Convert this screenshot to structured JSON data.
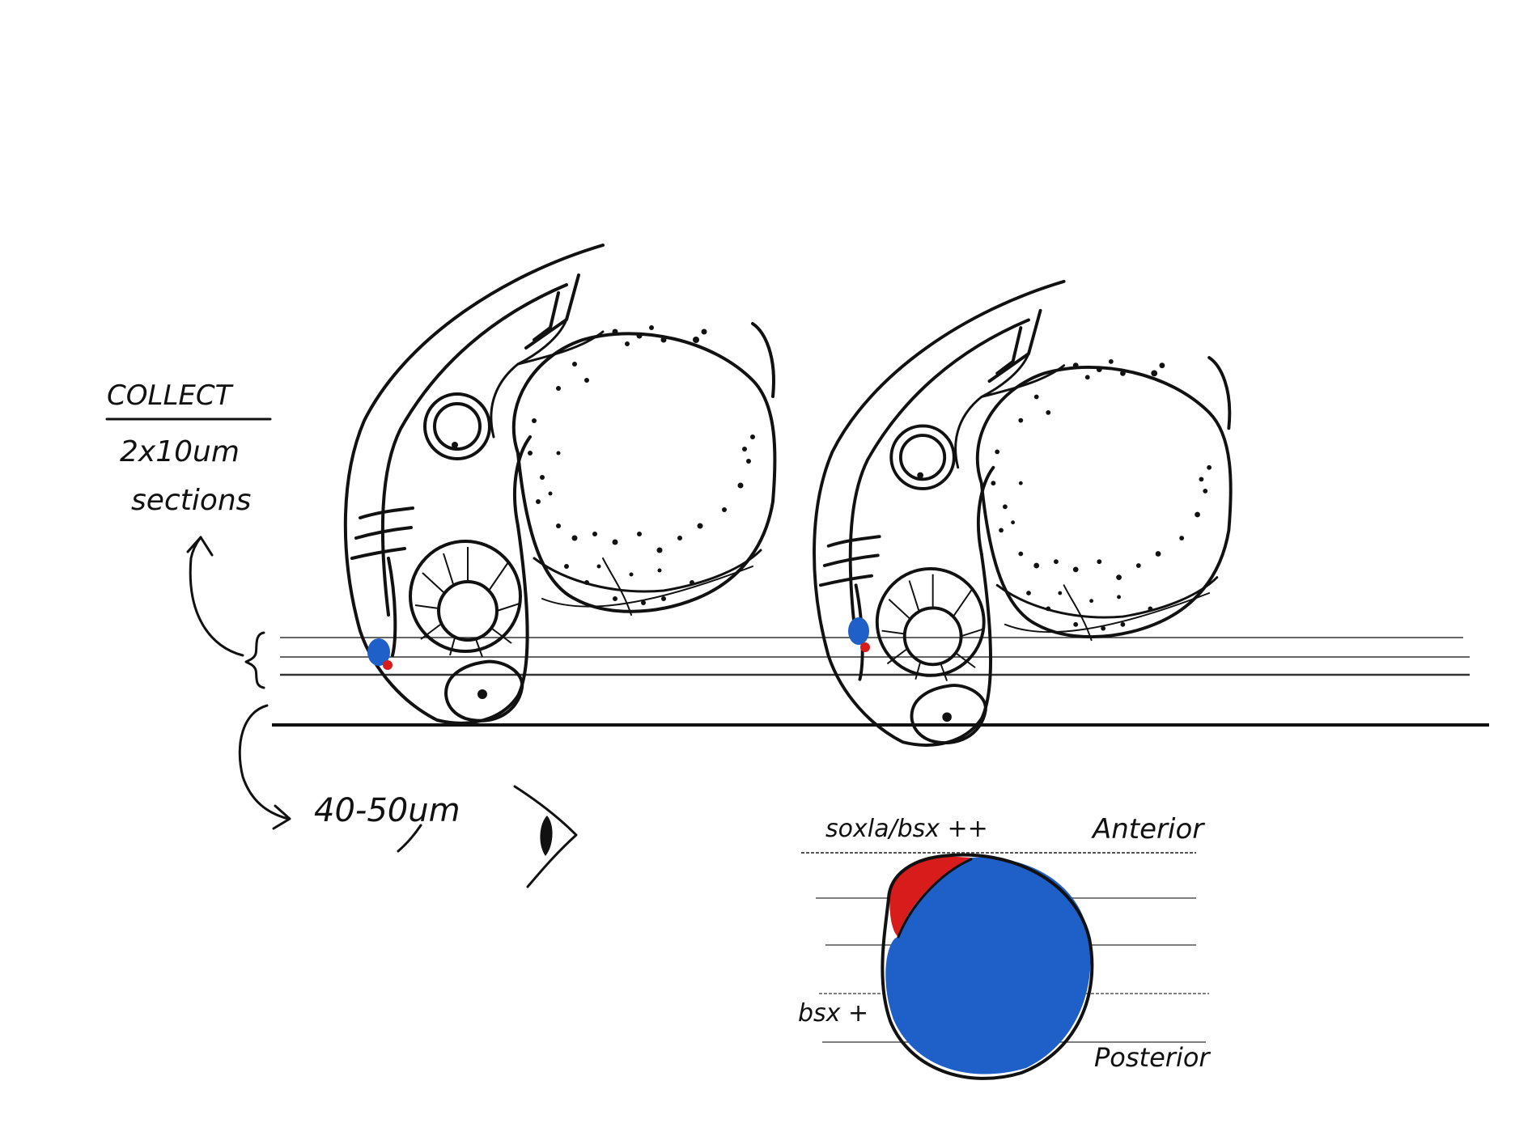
{
  "colors": {
    "ink": "#111111",
    "bsx_blue": "#1f5fc8",
    "soxla_red": "#d81b1b",
    "background": "#ffffff"
  },
  "left_annotations": {
    "heading": "COLLECT",
    "line_1": "2x10um",
    "line_2": "sections",
    "depth": "40-50um"
  },
  "legend": {
    "double_positive": "soxla/bsx ++",
    "single_positive": "bsx +",
    "anterior": "Anterior",
    "posterior": "Posterior"
  },
  "icons": [
    "eye-icon",
    "curved-arrow-up-icon",
    "curved-arrow-down-icon",
    "brace-icon"
  ]
}
